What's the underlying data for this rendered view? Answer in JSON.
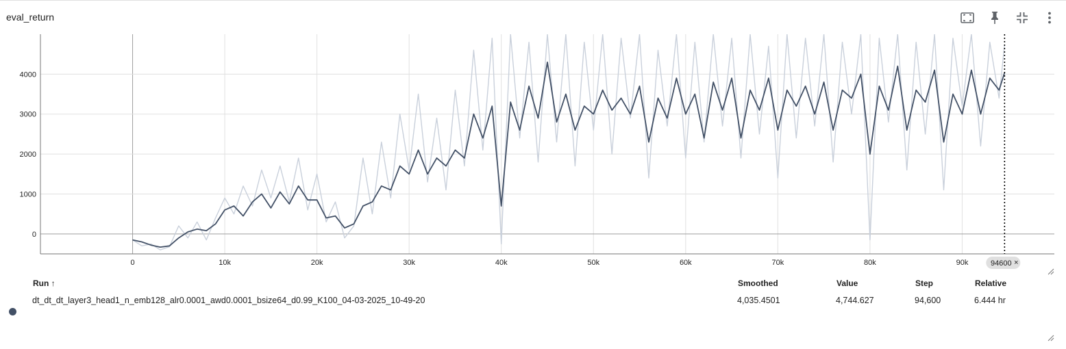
{
  "card": {
    "title": "eval_return",
    "toolbar": {
      "fit_icon": "fit-to-data-icon",
      "pin_icon": "pin-icon",
      "collapse_icon": "collapse-icon",
      "more_icon": "more-vert-icon"
    }
  },
  "chart_data": {
    "type": "line",
    "xlim": [
      -10000,
      100000
    ],
    "ylim": [
      -500,
      5000
    ],
    "x_ticks": [
      0,
      10000,
      20000,
      30000,
      40000,
      50000,
      60000,
      70000,
      80000,
      90000
    ],
    "x_tick_labels": [
      "0",
      "10k",
      "20k",
      "30k",
      "40k",
      "50k",
      "60k",
      "70k",
      "80k",
      "90k"
    ],
    "y_ticks": [
      0,
      1000,
      2000,
      3000,
      4000
    ],
    "y_tick_labels": [
      "0",
      "1000",
      "2000",
      "3000",
      "4000"
    ],
    "grid": true,
    "hover_step_label": "94600",
    "hover_step": 94600,
    "series": [
      {
        "role": "raw",
        "color": "#c9d0db",
        "x": [
          0,
          1000,
          2000,
          3000,
          4000,
          5000,
          6000,
          7000,
          8000,
          9000,
          10000,
          11000,
          12000,
          13000,
          14000,
          15000,
          16000,
          17000,
          18000,
          19000,
          20000,
          21000,
          22000,
          23000,
          24000,
          25000,
          26000,
          27000,
          28000,
          29000,
          30000,
          31000,
          32000,
          33000,
          34000,
          35000,
          36000,
          37000,
          38000,
          39000,
          40000,
          41000,
          42000,
          43000,
          44000,
          45000,
          46000,
          47000,
          48000,
          49000,
          50000,
          51000,
          52000,
          53000,
          54000,
          55000,
          56000,
          57000,
          58000,
          59000,
          60000,
          61000,
          62000,
          63000,
          64000,
          65000,
          66000,
          67000,
          68000,
          69000,
          70000,
          71000,
          72000,
          73000,
          74000,
          75000,
          76000,
          77000,
          78000,
          79000,
          80000,
          81000,
          82000,
          83000,
          84000,
          85000,
          86000,
          87000,
          88000,
          89000,
          90000,
          91000,
          92000,
          93000,
          94000,
          94600
        ],
        "y": [
          -150,
          -300,
          -250,
          -400,
          -320,
          200,
          -100,
          300,
          -150,
          400,
          900,
          500,
          1200,
          700,
          1600,
          900,
          1700,
          800,
          1900,
          600,
          1500,
          300,
          800,
          -100,
          200,
          1900,
          500,
          2300,
          900,
          3000,
          1600,
          3500,
          1300,
          2900,
          1100,
          3600,
          1700,
          4600,
          2100,
          4900,
          -250,
          5000,
          2400,
          4800,
          1800,
          5000,
          2300,
          5000,
          1700,
          4800,
          2600,
          5000,
          2000,
          4900,
          2900,
          5000,
          1400,
          4600,
          2700,
          5000,
          1900,
          4800,
          2300,
          5000,
          2700,
          4900,
          1900,
          5000,
          2500,
          4700,
          1400,
          5000,
          2400,
          4900,
          2700,
          5000,
          1800,
          4800,
          3000,
          5000,
          -150,
          4900,
          2800,
          5000,
          1600,
          4800,
          2500,
          5000,
          1100,
          4900,
          3200,
          5000,
          2200,
          4800,
          3400,
          4744.627
        ]
      },
      {
        "role": "smoothed",
        "color": "#425066",
        "x": [
          0,
          1000,
          2000,
          3000,
          4000,
          5000,
          6000,
          7000,
          8000,
          9000,
          10000,
          11000,
          12000,
          13000,
          14000,
          15000,
          16000,
          17000,
          18000,
          19000,
          20000,
          21000,
          22000,
          23000,
          24000,
          25000,
          26000,
          27000,
          28000,
          29000,
          30000,
          31000,
          32000,
          33000,
          34000,
          35000,
          36000,
          37000,
          38000,
          39000,
          40000,
          41000,
          42000,
          43000,
          44000,
          45000,
          46000,
          47000,
          48000,
          49000,
          50000,
          51000,
          52000,
          53000,
          54000,
          55000,
          56000,
          57000,
          58000,
          59000,
          60000,
          61000,
          62000,
          63000,
          64000,
          65000,
          66000,
          67000,
          68000,
          69000,
          70000,
          71000,
          72000,
          73000,
          74000,
          75000,
          76000,
          77000,
          78000,
          79000,
          80000,
          81000,
          82000,
          83000,
          84000,
          85000,
          86000,
          87000,
          88000,
          89000,
          90000,
          91000,
          92000,
          93000,
          94000,
          94600
        ],
        "y": [
          -150,
          -200,
          -280,
          -330,
          -300,
          -100,
          50,
          120,
          80,
          250,
          600,
          700,
          450,
          800,
          1000,
          650,
          1050,
          750,
          1200,
          850,
          850,
          400,
          450,
          150,
          250,
          700,
          800,
          1200,
          1100,
          1700,
          1500,
          2100,
          1500,
          1900,
          1700,
          2100,
          1900,
          3000,
          2400,
          3200,
          700,
          3300,
          2600,
          3700,
          2900,
          4300,
          2800,
          3500,
          2600,
          3200,
          3000,
          3600,
          3100,
          3400,
          3000,
          3700,
          2300,
          3400,
          2900,
          3900,
          3000,
          3500,
          2400,
          3800,
          3100,
          3900,
          2400,
          3600,
          3100,
          3900,
          2600,
          3600,
          3200,
          3700,
          3000,
          3800,
          2600,
          3600,
          3400,
          4000,
          2000,
          3700,
          3100,
          4200,
          2600,
          3600,
          3300,
          4100,
          2300,
          3500,
          3000,
          4100,
          3000,
          3900,
          3600,
          4035.4501
        ]
      }
    ]
  },
  "table": {
    "headers": {
      "run": "Run ↑",
      "smoothed": "Smoothed",
      "value": "Value",
      "step": "Step",
      "relative": "Relative"
    },
    "rows": [
      {
        "dot_color": "#425066",
        "run": "dt_dt_dt_layer3_head1_n_emb128_alr0.0001_awd0.0001_bsize64_d0.99_K100_04-03-2025_10-49-20",
        "smoothed": "4,035.4501",
        "value": "4,744.627",
        "step": "94,600",
        "relative": "6.444 hr"
      }
    ]
  }
}
